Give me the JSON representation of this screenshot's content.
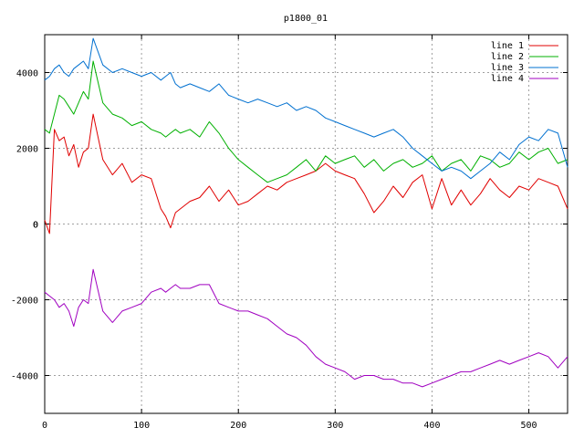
{
  "chart_data": {
    "type": "line",
    "title": "p1800_01",
    "xlabel": "",
    "ylabel": "",
    "xlim": [
      0,
      540
    ],
    "ylim": [
      -5000,
      5000
    ],
    "x_ticks": [
      "0",
      "100",
      "200",
      "300",
      "400",
      "500"
    ],
    "y_ticks": [
      "-4000",
      "-2000",
      "0",
      "2000",
      "4000"
    ],
    "grid": true,
    "legend_position": "top-right",
    "x": [
      0,
      5,
      10,
      15,
      20,
      25,
      30,
      35,
      40,
      45,
      50,
      60,
      70,
      80,
      90,
      100,
      110,
      120,
      125,
      130,
      135,
      140,
      150,
      160,
      170,
      180,
      190,
      200,
      210,
      220,
      230,
      240,
      250,
      260,
      270,
      280,
      290,
      300,
      310,
      320,
      330,
      340,
      350,
      360,
      370,
      380,
      390,
      400,
      410,
      420,
      430,
      440,
      450,
      460,
      470,
      480,
      490,
      500,
      510,
      520,
      530,
      540
    ],
    "series": [
      {
        "name": "line 1",
        "color": "#e00000",
        "values": [
          100,
          -250,
          2500,
          2200,
          2300,
          1800,
          2100,
          1500,
          1900,
          2000,
          2900,
          1700,
          1300,
          1600,
          1100,
          1300,
          1200,
          400,
          200,
          -100,
          300,
          400,
          600,
          700,
          1000,
          600,
          900,
          500,
          600,
          800,
          1000,
          900,
          1100,
          1200,
          1300,
          1400,
          1600,
          1400,
          1300,
          1200,
          800,
          300,
          600,
          1000,
          700,
          1100,
          1300,
          400,
          1200,
          500,
          900,
          500,
          800,
          1200,
          900,
          700,
          1000,
          900,
          1200,
          1100,
          1000,
          400
        ]
      },
      {
        "name": "line 2",
        "color": "#00b000",
        "values": [
          2500,
          2400,
          2900,
          3400,
          3300,
          3100,
          2900,
          3200,
          3500,
          3300,
          4300,
          3200,
          2900,
          2800,
          2600,
          2700,
          2500,
          2400,
          2300,
          2400,
          2500,
          2400,
          2500,
          2300,
          2700,
          2400,
          2000,
          1700,
          1500,
          1300,
          1100,
          1200,
          1300,
          1500,
          1700,
          1400,
          1800,
          1600,
          1700,
          1800,
          1500,
          1700,
          1400,
          1600,
          1700,
          1500,
          1600,
          1800,
          1400,
          1600,
          1700,
          1400,
          1800,
          1700,
          1500,
          1600,
          1900,
          1700,
          1900,
          2000,
          1600,
          1700
        ]
      },
      {
        "name": "line 3",
        "color": "#0070d0",
        "values": [
          3800,
          3900,
          4100,
          4200,
          4000,
          3900,
          4100,
          4200,
          4300,
          4100,
          4900,
          4200,
          4000,
          4100,
          4000,
          3900,
          4000,
          3800,
          3900,
          4000,
          3700,
          3600,
          3700,
          3600,
          3500,
          3700,
          3400,
          3300,
          3200,
          3300,
          3200,
          3100,
          3200,
          3000,
          3100,
          3000,
          2800,
          2700,
          2600,
          2500,
          2400,
          2300,
          2400,
          2500,
          2300,
          2000,
          1800,
          1600,
          1400,
          1500,
          1400,
          1200,
          1400,
          1600,
          1900,
          1700,
          2100,
          2300,
          2200,
          2500,
          2400,
          1500
        ]
      },
      {
        "name": "line 4",
        "color": "#a000c0",
        "values": [
          -1800,
          -1900,
          -2000,
          -2200,
          -2100,
          -2300,
          -2700,
          -2200,
          -2000,
          -2100,
          -1200,
          -2300,
          -2600,
          -2300,
          -2200,
          -2100,
          -1800,
          -1700,
          -1800,
          -1700,
          -1600,
          -1700,
          -1700,
          -1600,
          -1600,
          -2100,
          -2200,
          -2300,
          -2300,
          -2400,
          -2500,
          -2700,
          -2900,
          -3000,
          -3200,
          -3500,
          -3700,
          -3800,
          -3900,
          -4100,
          -4000,
          -4000,
          -4100,
          -4100,
          -4200,
          -4200,
          -4300,
          -4200,
          -4100,
          -4000,
          -3900,
          -3900,
          -3800,
          -3700,
          -3600,
          -3700,
          -3600,
          -3500,
          -3400,
          -3500,
          -3800,
          -3500
        ]
      }
    ]
  }
}
